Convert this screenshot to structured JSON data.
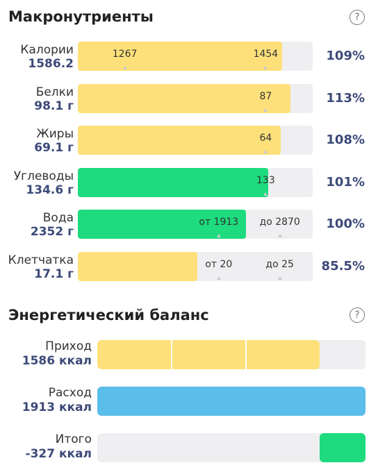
{
  "macros": {
    "title": "Макронутриенты",
    "help": "?",
    "rows": [
      {
        "name": "Калории",
        "value": "1586.2",
        "percent": "109%",
        "fill": 0.87,
        "color": "#fde07a",
        "markers": [
          {
            "text": "1267",
            "pos": 0.2
          },
          {
            "text": "1454",
            "pos": 0.8
          }
        ]
      },
      {
        "name": "Белки",
        "value": "98.1 г",
        "percent": "113%",
        "fill": 0.905,
        "color": "#fde07a",
        "markers": [
          {
            "text": "87",
            "pos": 0.8
          }
        ]
      },
      {
        "name": "Жиры",
        "value": "69.1 г",
        "percent": "108%",
        "fill": 0.865,
        "color": "#fde07a",
        "markers": [
          {
            "text": "64",
            "pos": 0.8
          }
        ]
      },
      {
        "name": "Углеводы",
        "value": "134.6 г",
        "percent": "101%",
        "fill": 0.81,
        "color": "#1ddb7e",
        "markers": [
          {
            "text": "133",
            "pos": 0.8
          }
        ]
      },
      {
        "name": "Вода",
        "value": "2352 г",
        "percent": "100%",
        "fill": 0.715,
        "color": "#1ddb7e",
        "markers": [
          {
            "text": "от 1913",
            "pos": 0.6
          },
          {
            "text": "до 2870",
            "pos": 0.86
          }
        ]
      },
      {
        "name": "Клетчатка",
        "value": "17.1 г",
        "percent": "85.5%",
        "fill": 0.51,
        "color": "#fde07a",
        "markers": [
          {
            "text": "от 20",
            "pos": 0.6
          },
          {
            "text": "до 25",
            "pos": 0.86
          }
        ]
      }
    ]
  },
  "energy": {
    "title": "Энергетический баланс",
    "help": "?",
    "rows": [
      {
        "name": "Приход",
        "value": "1586 ккал",
        "fill": 0.83,
        "color": "#fde07a",
        "segments": 3
      },
      {
        "name": "Расход",
        "value": "1913 ккал",
        "fill": 1.0,
        "color": "#5bbde9",
        "segments": 1
      },
      {
        "name": "Итого",
        "value": "-327 ккал",
        "fill": 0.17,
        "color": "#1ddb7e",
        "segments": 1,
        "align": "right"
      }
    ]
  }
}
